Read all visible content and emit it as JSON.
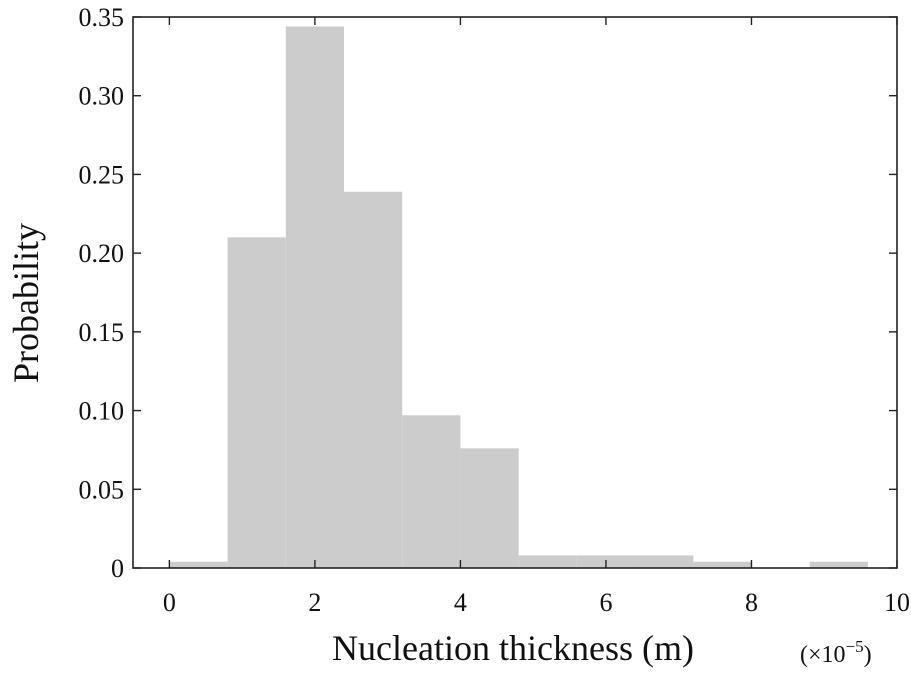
{
  "chart_data": {
    "type": "bar",
    "title": "",
    "xlabel": "Nucleation thickness (m)",
    "ylabel": "Probability",
    "x_multiplier": {
      "base": "(×10",
      "exponent": "−5",
      "close": ")"
    },
    "xlim": [
      -0.5,
      10
    ],
    "ylim": [
      0,
      0.35
    ],
    "x_ticks": [
      0,
      2,
      4,
      6,
      8,
      10
    ],
    "x_tick_labels": [
      "0",
      "2",
      "4",
      "6",
      "8",
      "10"
    ],
    "y_ticks": [
      0,
      0.05,
      0.1,
      0.15,
      0.2,
      0.25,
      0.3,
      0.35
    ],
    "y_tick_labels": [
      "0",
      "0.05",
      "0.10",
      "0.15",
      "0.20",
      "0.25",
      "0.30",
      "0.35"
    ],
    "bin_edges": [
      0,
      0.8,
      1.6,
      2.4,
      3.2,
      4.0,
      4.8,
      5.6,
      6.4,
      7.2,
      8.0,
      8.8,
      9.6
    ],
    "values": [
      0.004,
      0.21,
      0.344,
      0.239,
      0.097,
      0.076,
      0.008,
      0.008,
      0.008,
      0.004,
      0.0,
      0.004
    ],
    "bar_color": "#cccccc",
    "grid": false
  }
}
